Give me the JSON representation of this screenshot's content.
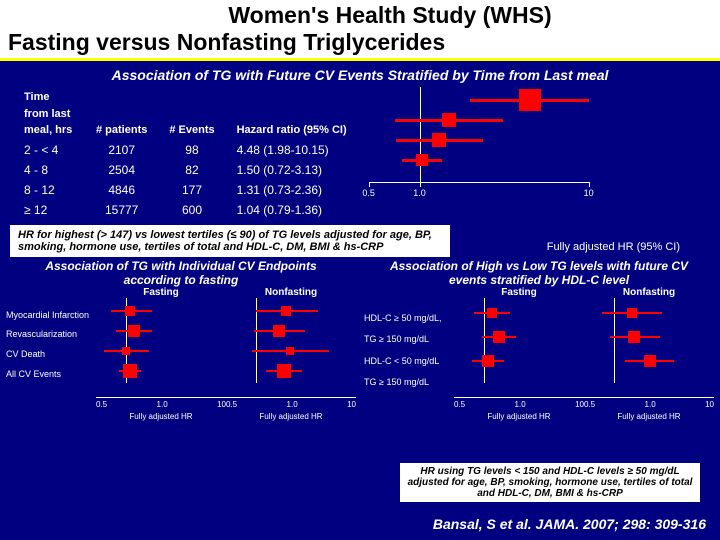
{
  "title": {
    "main": "Women's Health Study (WHS)",
    "sub": "Fasting versus Nonfasting Triglycerides"
  },
  "assoc_header": "Association of TG with Future CV Events Stratified by Time from Last meal",
  "table": {
    "headers": {
      "time": "Time from last meal, hrs",
      "patients": "# patients",
      "events": "# Events",
      "hr": "Hazard ratio (95% CI)"
    },
    "rows": [
      {
        "cat": "2 - < 4",
        "n": "2107",
        "ev": "98",
        "hr": "4.48 (1.98-10.15)"
      },
      {
        "cat": "4 - 8",
        "n": "2504",
        "ev": "82",
        "hr": "1.50 (0.72-3.13)"
      },
      {
        "cat": "8 - 12",
        "n": "4846",
        "ev": "177",
        "hr": "1.31 (0.73-2.36)"
      },
      {
        "cat": "≥ 12",
        "n": "15777",
        "ev": "600",
        "hr": "1.04 (0.79-1.36)"
      }
    ]
  },
  "forest1": {
    "type": "forest",
    "xscale": "log",
    "xlim": [
      0.5,
      10
    ],
    "xticks": [
      0.5,
      1.0,
      10
    ],
    "xtick_labels": [
      "0.5",
      "1.0",
      "10"
    ],
    "axis_label": "Fully adjusted HR (95% CI)",
    "line_color": "#ff0000",
    "box_color": "#ff0000",
    "axis_color": "#ffffff",
    "background": "#000080",
    "rows": [
      {
        "point": 4.48,
        "lo": 1.98,
        "hi": 10.15,
        "size": 22
      },
      {
        "point": 1.5,
        "lo": 0.72,
        "hi": 3.13,
        "size": 14
      },
      {
        "point": 1.31,
        "lo": 0.73,
        "hi": 2.36,
        "size": 14
      },
      {
        "point": 1.04,
        "lo": 0.79,
        "hi": 1.36,
        "size": 12
      }
    ]
  },
  "hr_note": "HR for highest (> 147) vs lowest tertiles (≤ 90) of TG levels adjusted for age, BP, smoking, hormone use, tertiles of total and HDL-C, DM, BMI & hs-CRP",
  "panel_left": {
    "title": "Association of TG with Individual CV Endpoints according to fasting",
    "sub_left": "Fasting",
    "sub_right": "Nonfasting",
    "row_labels": [
      "Myocardial Infarction",
      "Revascularization",
      "CV Death",
      "All CV Events"
    ],
    "xscale": "log",
    "xlim": [
      0.5,
      10
    ],
    "xticks": [
      "0.5",
      "1.0",
      "10"
    ],
    "axis_label": "Fully adjusted HR",
    "color": "#ff0000",
    "left": {
      "rows": [
        {
          "point": 1.1,
          "lo": 0.7,
          "hi": 1.8,
          "size": 10
        },
        {
          "point": 1.2,
          "lo": 0.8,
          "hi": 1.8,
          "size": 12
        },
        {
          "point": 1.0,
          "lo": 0.6,
          "hi": 1.7,
          "size": 8
        },
        {
          "point": 1.1,
          "lo": 0.85,
          "hi": 1.4,
          "size": 14
        }
      ]
    },
    "right": {
      "rows": [
        {
          "point": 2.0,
          "lo": 1.0,
          "hi": 4.2,
          "size": 10
        },
        {
          "point": 1.7,
          "lo": 0.95,
          "hi": 3.1,
          "size": 12
        },
        {
          "point": 2.2,
          "lo": 0.9,
          "hi": 5.4,
          "size": 8
        },
        {
          "point": 1.9,
          "lo": 1.25,
          "hi": 2.9,
          "size": 14
        }
      ]
    }
  },
  "panel_right": {
    "title": "Association of High vs Low TG levels with future CV events stratified by HDL-C level",
    "sub_left": "Fasting",
    "sub_right": "Nonfasting",
    "row_labels": [
      "HDL-C ≥ 50 mg/dL, TG ≥ 150 mg/dL",
      "HDL-C < 50 mg/dL",
      "TG ≥ 150 mg/dL"
    ],
    "xscale": "log",
    "xlim": [
      0.5,
      10
    ],
    "xticks": [
      "0.5",
      "1.0",
      "10"
    ],
    "axis_label": "Fully adjusted HR",
    "color": "#ff0000",
    "left": {
      "rows": [
        {
          "point": 1.2,
          "lo": 0.8,
          "hi": 1.8,
          "size": 10
        },
        {
          "point": 1.4,
          "lo": 0.95,
          "hi": 2.1,
          "size": 12
        },
        {
          "point": 1.1,
          "lo": 0.75,
          "hi": 1.6,
          "size": 12
        }
      ]
    },
    "right": {
      "rows": [
        {
          "point": 1.5,
          "lo": 0.75,
          "hi": 3.0,
          "size": 10
        },
        {
          "point": 1.6,
          "lo": 0.9,
          "hi": 2.9,
          "size": 12
        },
        {
          "point": 2.3,
          "lo": 1.3,
          "hi": 4.0,
          "size": 12
        }
      ]
    }
  },
  "hr_note2": "HR using TG levels < 150 and HDL-C levels ≥ 50 mg/dL adjusted for age, BP, smoking, hormone use, tertiles of total and HDL-C, DM, BMI & hs-CRP",
  "citation": "Bansal, S et al. JAMA. 2007; 298: 309-316"
}
